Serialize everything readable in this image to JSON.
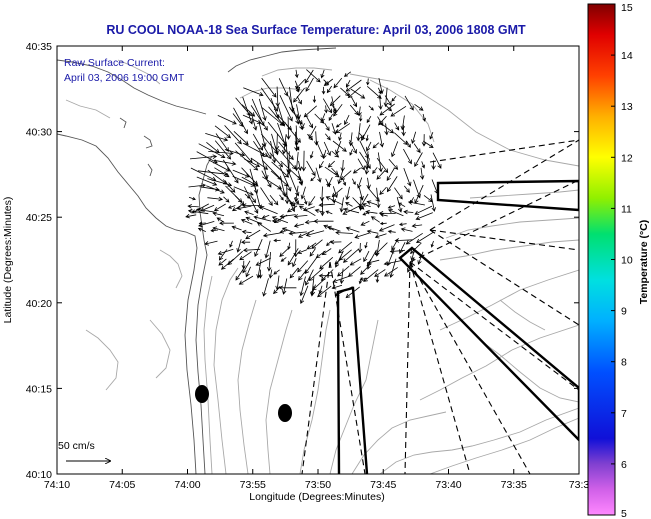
{
  "title": "RU COOL  NOAA-18  Sea Surface Temperature:  April 03, 2006 1808 GMT",
  "inset": {
    "line1": "Raw Surface Current:",
    "line2": "April 03, 2006 19:00 GMT"
  },
  "scale_label": "50 cm/s",
  "axes": {
    "xlabel": "Longitude (Degrees:Minutes)",
    "ylabel": "Latitude (Degrees:Minutes)",
    "x_ticks": [
      "74:10",
      "74:05",
      "74:00",
      "73:55",
      "73:50",
      "73:45",
      "73:40",
      "73:35",
      "73:3"
    ],
    "y_ticks": [
      "40:35",
      "40:30",
      "40:25",
      "40:20",
      "40:15",
      "40:10"
    ]
  },
  "colorbar": {
    "label": "Temperature (°C)",
    "ticks": [
      "15",
      "14",
      "13",
      "12",
      "11",
      "10",
      "9",
      "8",
      "7",
      "6",
      "5"
    ],
    "min": 5,
    "max": 15
  },
  "colors": {
    "title_text": "#1a1aa8",
    "contour": "#a8a8a8",
    "land_outline": "#555555"
  }
}
